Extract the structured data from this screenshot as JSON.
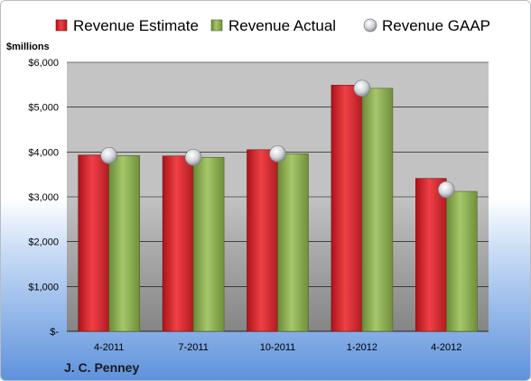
{
  "chart_data": {
    "type": "bar",
    "unit_label": "$millions",
    "categories": [
      "4-2011",
      "7-2011",
      "10-2011",
      "1-2012",
      "4-2012"
    ],
    "series": [
      {
        "name": "Revenue Estimate",
        "type": "bar",
        "color": "#e0262d",
        "values": [
          3930,
          3910,
          4050,
          5490,
          3410
        ]
      },
      {
        "name": "Revenue Actual",
        "type": "bar",
        "color": "#8cb04e",
        "values": [
          3920,
          3880,
          3960,
          5420,
          3120
        ]
      },
      {
        "name": "Revenue GAAP",
        "type": "marker",
        "color": "#c9cbcf",
        "values": [
          3920,
          3880,
          3960,
          5420,
          3160
        ]
      }
    ],
    "yticks": [
      {
        "value": 0,
        "label": "$-"
      },
      {
        "value": 1000,
        "label": "$1,000"
      },
      {
        "value": 2000,
        "label": "$2,000"
      },
      {
        "value": 3000,
        "label": "$3,000"
      },
      {
        "value": 4000,
        "label": "$4,000"
      },
      {
        "value": 5000,
        "label": "$5,000"
      },
      {
        "value": 6000,
        "label": "$6,000"
      }
    ],
    "ylim": [
      0,
      6000
    ],
    "grid": true,
    "legend_position": "top",
    "company": "J. C. Penney"
  }
}
